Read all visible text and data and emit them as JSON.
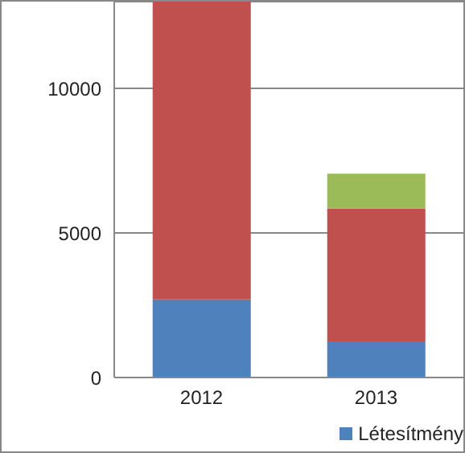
{
  "chart_data": {
    "type": "bar",
    "stacked": true,
    "categories": [
      "2012",
      "2013"
    ],
    "series": [
      {
        "name": "Létesítmény",
        "color": "#4f81bd",
        "values": [
          2700,
          1250
        ]
      },
      {
        "color": "#c0504d",
        "values": [
          10300,
          4600
        ]
      },
      {
        "color": "#9bbb59",
        "values": [
          null,
          1200
        ]
      }
    ],
    "ylim": [
      0,
      13000
    ],
    "yticks": [
      0,
      5000,
      10000
    ],
    "grid": "y",
    "legend": "bottom right"
  }
}
